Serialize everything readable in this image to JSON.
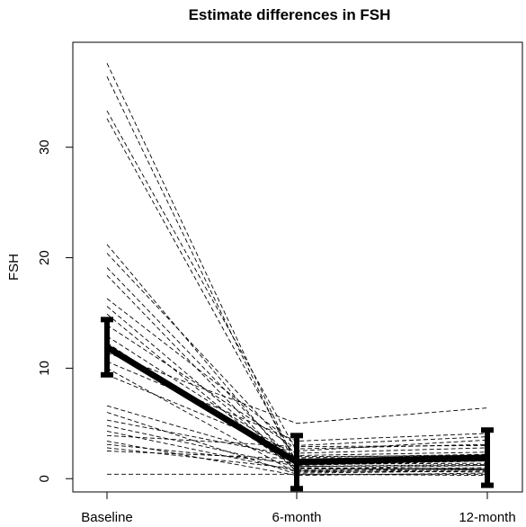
{
  "chart_data": {
    "type": "line",
    "title": "Estimate differences in FSH",
    "xlabel": "",
    "ylabel": "FSH",
    "categories": [
      "Baseline",
      "6-month",
      "12-month"
    ],
    "ylim": [
      -1.2,
      39.5
    ],
    "yticks": [
      0,
      10,
      20,
      30
    ],
    "grid": false,
    "legend": "none",
    "mean_series": {
      "values": [
        11.9,
        1.5,
        1.9
      ],
      "error_low": [
        9.4,
        -0.9,
        -0.6
      ],
      "error_high": [
        14.4,
        3.9,
        4.4
      ],
      "color": "#000000"
    },
    "individual_series": [
      {
        "values": [
          37.6,
          1.2,
          1.6
        ]
      },
      {
        "values": [
          36.4,
          0.9,
          1.2
        ]
      },
      {
        "values": [
          33.3,
          2.5,
          3.5
        ]
      },
      {
        "values": [
          32.6,
          1.5,
          2.1
        ]
      },
      {
        "values": [
          21.2,
          0.8,
          1.0
        ]
      },
      {
        "values": [
          20.4,
          2.1,
          2.4
        ]
      },
      {
        "values": [
          19.1,
          1.3,
          1.4
        ]
      },
      {
        "values": [
          18.4,
          0.6,
          0.8
        ]
      },
      {
        "values": [
          16.3,
          3.0,
          3.8
        ]
      },
      {
        "values": [
          15.6,
          1.1,
          1.3
        ]
      },
      {
        "values": [
          14.9,
          0.7,
          0.6
        ]
      },
      {
        "values": [
          13.9,
          2.7,
          3.1
        ]
      },
      {
        "values": [
          12.9,
          1.9,
          2.2
        ]
      },
      {
        "values": [
          12.3,
          1.0,
          0.9
        ]
      },
      {
        "values": [
          11.4,
          5.0,
          6.4
        ]
      },
      {
        "values": [
          10.6,
          3.4,
          4.1
        ]
      },
      {
        "values": [
          10.0,
          0.5,
          0.7
        ]
      },
      {
        "values": [
          9.4,
          2.3,
          2.8
        ]
      },
      {
        "values": [
          6.6,
          1.6,
          1.7
        ]
      },
      {
        "values": [
          6.0,
          0.4,
          0.3
        ]
      },
      {
        "values": [
          5.3,
          2.0,
          2.1
        ]
      },
      {
        "values": [
          4.8,
          1.1,
          1.2
        ]
      },
      {
        "values": [
          4.3,
          0.7,
          0.9
        ]
      },
      {
        "values": [
          3.9,
          2.9,
          3.0
        ]
      },
      {
        "values": [
          3.4,
          0.3,
          0.5
        ]
      },
      {
        "values": [
          3.1,
          1.4,
          1.6
        ]
      },
      {
        "values": [
          2.8,
          0.9,
          0.8
        ]
      },
      {
        "values": [
          2.5,
          1.8,
          2.0
        ]
      },
      {
        "values": [
          0.4,
          0.4,
          0.4
        ]
      }
    ]
  }
}
